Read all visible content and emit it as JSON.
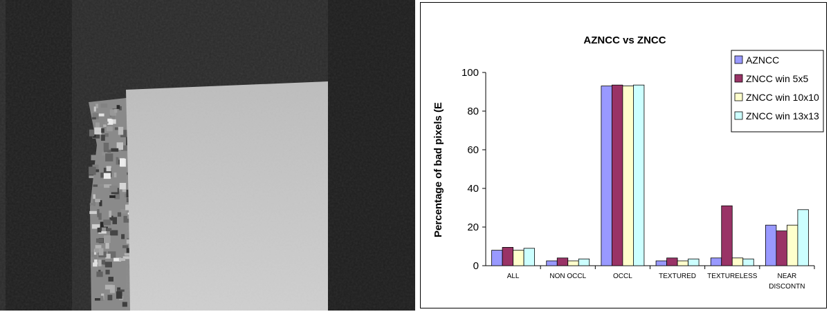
{
  "depth_image": {
    "colors": {
      "background": "#2b2b2b",
      "strip": "#1f1f1f",
      "plane_top": "#bdbdbd",
      "plane_bottom": "#cfcfcf"
    }
  },
  "chart_data": {
    "type": "bar",
    "title": "AZNCC vs ZNCC",
    "xlabel": "",
    "ylabel": "Percentage of bad pixels (E",
    "ylim": [
      0,
      100
    ],
    "yticks": [
      0,
      20,
      40,
      60,
      80,
      100
    ],
    "grid": false,
    "legend_position": "top-right",
    "categories": [
      [
        "ALL"
      ],
      [
        "NON OCCL"
      ],
      [
        "OCCL"
      ],
      [
        "TEXTURED"
      ],
      [
        "TEXTURELESS"
      ],
      [
        "NEAR",
        "DISCONTN"
      ]
    ],
    "series": [
      {
        "name": "AZNCC",
        "color": "#9999ff",
        "values": [
          8,
          2.5,
          93,
          2.5,
          4,
          21
        ]
      },
      {
        "name": "ZNCC win 5x5",
        "color": "#993366",
        "values": [
          9.5,
          4,
          93.5,
          4,
          31,
          18
        ]
      },
      {
        "name": "ZNCC win 10x10",
        "color": "#ffffcc",
        "values": [
          8,
          2.5,
          93,
          2.5,
          4,
          21
        ]
      },
      {
        "name": "ZNCC win 13x13",
        "color": "#ccffff",
        "values": [
          9,
          3.5,
          93.5,
          3.5,
          3.5,
          29
        ]
      }
    ]
  }
}
